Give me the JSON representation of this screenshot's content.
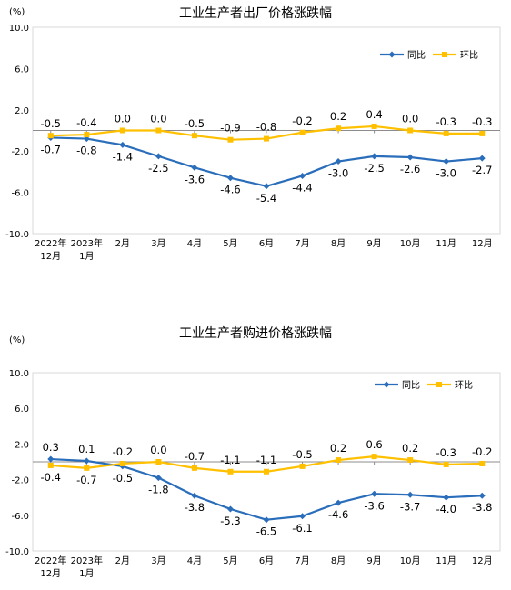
{
  "chart_data": [
    {
      "type": "line",
      "title": "工业生产者出厂价格涨跌幅",
      "ylabel": "(%)",
      "ylim": [
        -10,
        10
      ],
      "yticks": [
        "10.0",
        "6.0",
        "2.0",
        "-2.0",
        "-6.0",
        "-10.0"
      ],
      "categories": [
        [
          "2022年",
          "12月"
        ],
        [
          "2023年",
          "1月"
        ],
        [
          "2月"
        ],
        [
          "3月"
        ],
        [
          "4月"
        ],
        [
          "5月"
        ],
        [
          "6月"
        ],
        [
          "7月"
        ],
        [
          "8月"
        ],
        [
          "9月"
        ],
        [
          "10月"
        ],
        [
          "11月"
        ],
        [
          "12月"
        ]
      ],
      "legend": "top-right",
      "grid": false,
      "series": [
        {
          "name": "同比",
          "color": "#2a6ebb",
          "values": [
            -0.7,
            -0.8,
            -1.4,
            -2.5,
            -3.6,
            -4.6,
            -5.4,
            -4.4,
            -3.0,
            -2.5,
            -2.6,
            -3.0,
            -2.7
          ],
          "labels": [
            "-0.7",
            "-0.8",
            "-1.4",
            "-2.5",
            "-3.6",
            "-4.6",
            "-5.4",
            "-4.4",
            "-3.0",
            "-2.5",
            "-2.6",
            "-3.0",
            "-2.7"
          ]
        },
        {
          "name": "环比",
          "color": "#ffc000",
          "values": [
            -0.5,
            -0.4,
            0.0,
            0.0,
            -0.5,
            -0.9,
            -0.8,
            -0.2,
            0.2,
            0.4,
            0.0,
            -0.3,
            -0.3
          ],
          "labels": [
            "-0.5",
            "-0.4",
            "0.0",
            "0.0",
            "-0.5",
            "-0.9",
            "-0.8",
            "-0.2",
            "0.2",
            "0.4",
            "0.0",
            "-0.3",
            "-0.3"
          ]
        }
      ]
    },
    {
      "type": "line",
      "title": "工业生产者购进价格涨跌幅",
      "ylabel": "(%)",
      "ylim": [
        -10,
        10
      ],
      "yticks": [
        "10.0",
        "6.0",
        "2.0",
        "-2.0",
        "-6.0",
        "-10.0"
      ],
      "categories": [
        [
          "2022年",
          "12月"
        ],
        [
          "2023年",
          "1月"
        ],
        [
          "2月"
        ],
        [
          "3月"
        ],
        [
          "4月"
        ],
        [
          "5月"
        ],
        [
          "6月"
        ],
        [
          "7月"
        ],
        [
          "8月"
        ],
        [
          "9月"
        ],
        [
          "10月"
        ],
        [
          "11月"
        ],
        [
          "12月"
        ]
      ],
      "legend": "top-right",
      "grid": false,
      "series": [
        {
          "name": "同比",
          "color": "#2a6ebb",
          "values": [
            0.3,
            0.1,
            -0.5,
            -1.8,
            -3.8,
            -5.3,
            -6.5,
            -6.1,
            -4.6,
            -3.6,
            -3.7,
            -4.0,
            -3.8
          ],
          "labels": [
            "0.3",
            "0.1",
            "-0.5",
            "-1.8",
            "-3.8",
            "-5.3",
            "-6.5",
            "-6.1",
            "-4.6",
            "-3.6",
            "-3.7",
            "-4.0",
            "-3.8"
          ]
        },
        {
          "name": "环比",
          "color": "#ffc000",
          "values": [
            -0.4,
            -0.7,
            -0.2,
            0.0,
            -0.7,
            -1.1,
            -1.1,
            -0.5,
            0.2,
            0.6,
            0.2,
            -0.3,
            -0.2
          ],
          "labels": [
            "-0.4",
            "-0.7",
            "-0.2",
            "0.0",
            "-0.7",
            "-1.1",
            "-1.1",
            "-0.5",
            "0.2",
            "0.6",
            "0.2",
            "-0.3",
            "-0.2"
          ]
        }
      ]
    }
  ]
}
